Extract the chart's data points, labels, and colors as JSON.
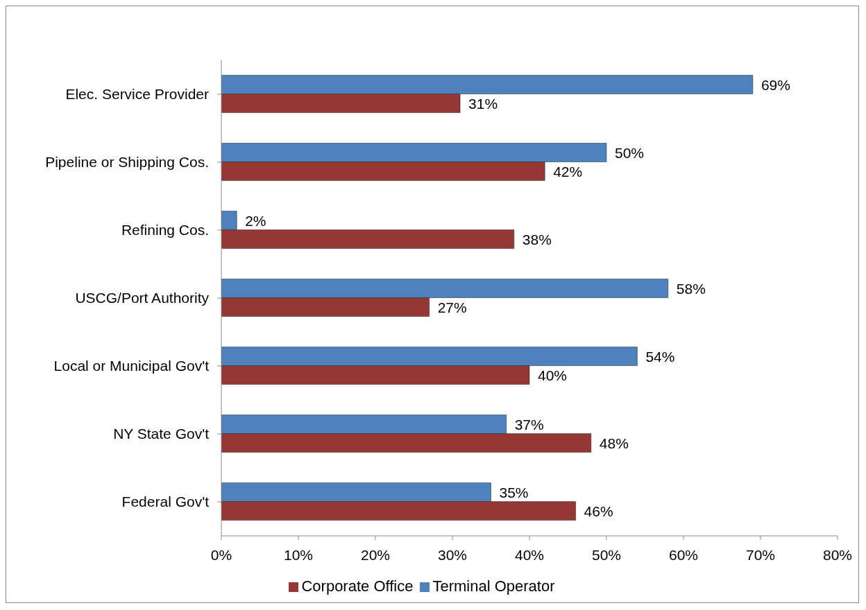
{
  "chart_data": {
    "type": "bar",
    "orientation": "horizontal",
    "categories": [
      "Elec. Service Provider",
      "Pipeline or Shipping Cos.",
      "Refining Cos.",
      "USCG/Port Authority",
      "Local or Municipal Gov't",
      "NY State Gov't",
      "Federal Gov't"
    ],
    "series": [
      {
        "name": "Terminal Operator",
        "color": "#4f81bd",
        "values": [
          69,
          50,
          2,
          58,
          54,
          37,
          35
        ],
        "value_labels": [
          "69%",
          "50%",
          "2%",
          "58%",
          "54%",
          "37%",
          "35%"
        ]
      },
      {
        "name": "Corporate Office",
        "color": "#953735",
        "values": [
          31,
          42,
          38,
          27,
          40,
          48,
          46
        ],
        "value_labels": [
          "31%",
          "42%",
          "38%",
          "27%",
          "40%",
          "48%",
          "46%"
        ]
      }
    ],
    "xlim": [
      0,
      80
    ],
    "xticks": [
      {
        "value": 0,
        "label": "0%"
      },
      {
        "value": 10,
        "label": "10%"
      },
      {
        "value": 20,
        "label": "20%"
      },
      {
        "value": 30,
        "label": "30%"
      },
      {
        "value": 40,
        "label": "40%"
      },
      {
        "value": 50,
        "label": "50%"
      },
      {
        "value": 60,
        "label": "60%"
      },
      {
        "value": 70,
        "label": "70%"
      },
      {
        "value": 80,
        "label": "80%"
      }
    ],
    "grid": false,
    "legend": "bottom"
  }
}
